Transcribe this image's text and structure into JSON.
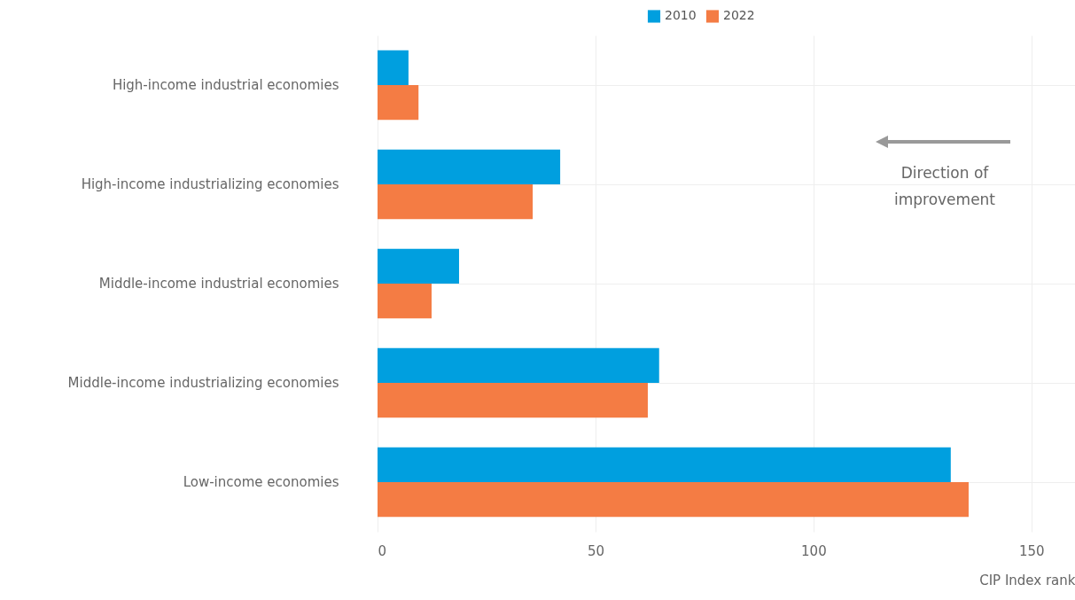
{
  "chart_data": {
    "type": "bar",
    "orientation": "horizontal",
    "xlabel": "CIP Index rank",
    "categories": [
      "High-income industrial economies",
      "High-income industrializing economies",
      "Middle-income industrial economies",
      "Middle-income industrializing economies",
      "Low-income economies"
    ],
    "series": [
      {
        "name": "2010",
        "color": "#009fdf",
        "values": [
          7.1,
          41.9,
          18.7,
          64.6,
          131.5
        ]
      },
      {
        "name": "2022",
        "color": "#f47c44",
        "values": [
          9.4,
          35.6,
          12.4,
          62,
          135.6
        ]
      }
    ],
    "xlim": [
      0,
      160
    ],
    "xticks": [
      0,
      50,
      100,
      150
    ],
    "grid": true,
    "legend": "top",
    "annotations": [
      "Direction of improvement"
    ]
  }
}
